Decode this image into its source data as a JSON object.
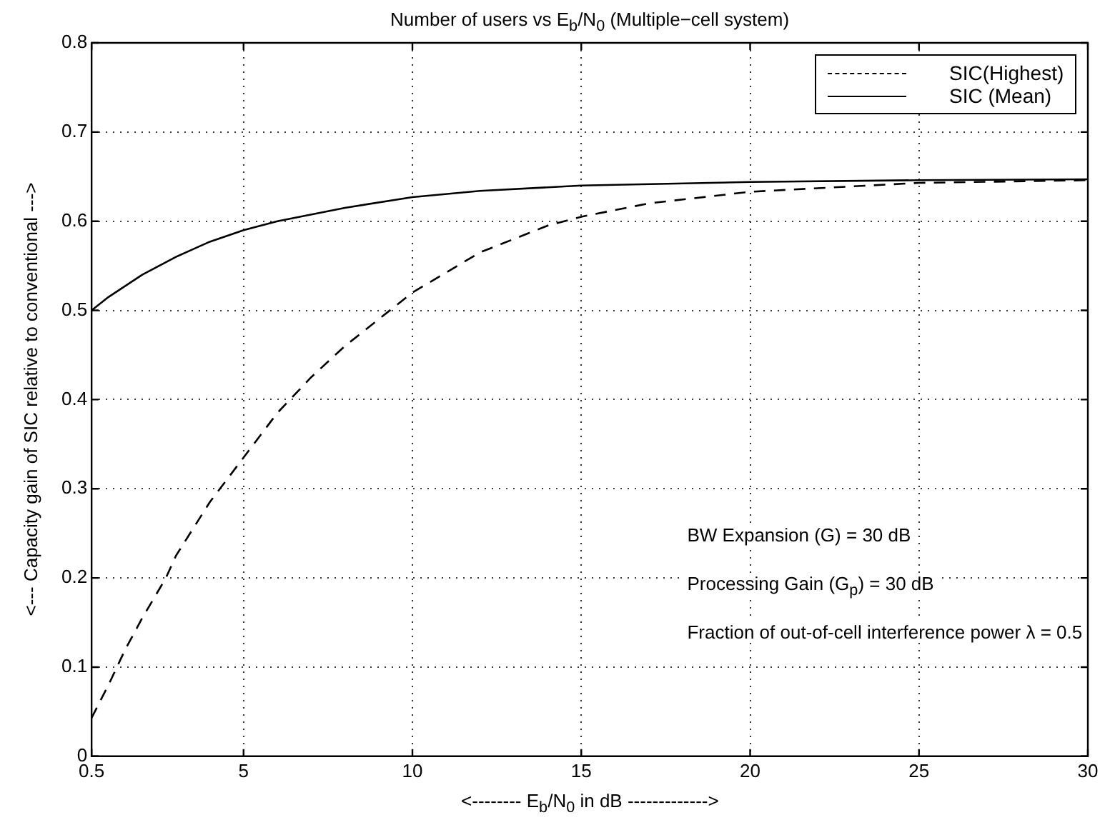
{
  "chart_data": {
    "type": "line",
    "title": "Number of users vs E$_{b}$/N$_{0}$ (Multiple−cell system)",
    "xlabel": "<-------- E$_{b}$/N$_{0}$ in dB ------------->",
    "ylabel": "<--- Capacity gain of SIC relative to conventional --->",
    "xlim": [
      0.5,
      30
    ],
    "xticks": [
      0.5,
      5,
      10,
      15,
      20,
      25,
      30
    ],
    "ylim": [
      0,
      0.8
    ],
    "yticks": [
      0,
      0.1,
      0.2,
      0.3,
      0.4,
      0.5,
      0.6,
      0.7,
      0.8
    ],
    "grid": true,
    "legend": "top right",
    "marker": "none",
    "series": [
      {
        "name": "SIC(Highest)",
        "color": "#000000",
        "line_style": "dashed",
        "x": [
          0.5,
          1,
          1.5,
          2,
          2.7,
          3,
          4,
          5,
          6,
          7,
          8,
          9,
          10,
          12,
          14,
          15,
          17,
          20,
          25,
          30
        ],
        "values": [
          0.043,
          0.08,
          0.12,
          0.155,
          0.2,
          0.225,
          0.285,
          0.335,
          0.385,
          0.425,
          0.46,
          0.49,
          0.52,
          0.565,
          0.595,
          0.605,
          0.62,
          0.633,
          0.643,
          0.646
        ]
      },
      {
        "name": "SIC (Mean)",
        "color": "#000000",
        "line_style": "solid",
        "x": [
          0.5,
          1,
          2,
          3,
          4,
          5,
          6,
          8,
          10,
          12,
          15,
          20,
          25,
          30
        ],
        "values": [
          0.5,
          0.515,
          0.54,
          0.56,
          0.577,
          0.59,
          0.6,
          0.615,
          0.627,
          0.634,
          0.64,
          0.644,
          0.646,
          0.647
        ]
      }
    ],
    "annotations": [
      "BW Expansion (G) = 30 dB",
      "Processing Gain (G$_{p}$) = 30 dB",
      "Fraction of out-of-cell interference power λ = 0.5"
    ]
  }
}
